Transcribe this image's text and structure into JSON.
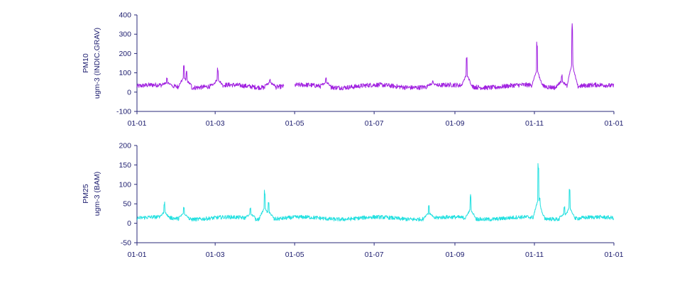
{
  "chart_data": [
    {
      "type": "line",
      "ylabel": "PM10",
      "ylabel2": "ugm-3 (INDIC.GRAV)",
      "color": "#a020e0",
      "ylim": [
        -100,
        400
      ],
      "yticks": [
        "400",
        "300",
        "200",
        "100",
        "0",
        "-100"
      ],
      "xticks": [
        "01-01",
        "01-03",
        "01-05",
        "01-07",
        "01-09",
        "01-11",
        "01-01"
      ],
      "gap": [
        "2016-04-23",
        "2016-05-01"
      ],
      "baseline": 28,
      "noise": 12,
      "events": [
        {
          "x": "2016-01-24",
          "y": 80
        },
        {
          "x": "2016-02-06",
          "y": 145
        },
        {
          "x": "2016-02-08",
          "y": 110
        },
        {
          "x": "2016-03-03",
          "y": 128
        },
        {
          "x": "2016-04-12",
          "y": 70
        },
        {
          "x": "2016-05-25",
          "y": 80
        },
        {
          "x": "2016-08-15",
          "y": 60
        },
        {
          "x": "2016-09-10",
          "y": 190
        },
        {
          "x": "2016-11-03",
          "y": 268
        },
        {
          "x": "2016-11-04",
          "y": 90
        },
        {
          "x": "2016-11-22",
          "y": 90
        },
        {
          "x": "2016-11-30",
          "y": 370
        }
      ]
    },
    {
      "type": "line",
      "ylabel": "PM25",
      "ylabel2": "ugm-3 (BAM)",
      "color": "#22e0e0",
      "ylim": [
        -50,
        200
      ],
      "yticks": [
        "200",
        "150",
        "100",
        "50",
        "0",
        "-50"
      ],
      "xticks": [
        "01-01",
        "01-03",
        "01-05",
        "01-07",
        "01-09",
        "01-11",
        "01-01"
      ],
      "gap": [],
      "baseline": 12,
      "noise": 5,
      "events": [
        {
          "x": "2016-01-22",
          "y": 55
        },
        {
          "x": "2016-02-06",
          "y": 45
        },
        {
          "x": "2016-03-28",
          "y": 40
        },
        {
          "x": "2016-04-08",
          "y": 87
        },
        {
          "x": "2016-04-11",
          "y": 55
        },
        {
          "x": "2016-08-12",
          "y": 47
        },
        {
          "x": "2016-09-13",
          "y": 75
        },
        {
          "x": "2016-11-04",
          "y": 155
        },
        {
          "x": "2016-11-05",
          "y": 65
        },
        {
          "x": "2016-11-24",
          "y": 43
        },
        {
          "x": "2016-11-28",
          "y": 88
        }
      ]
    }
  ]
}
